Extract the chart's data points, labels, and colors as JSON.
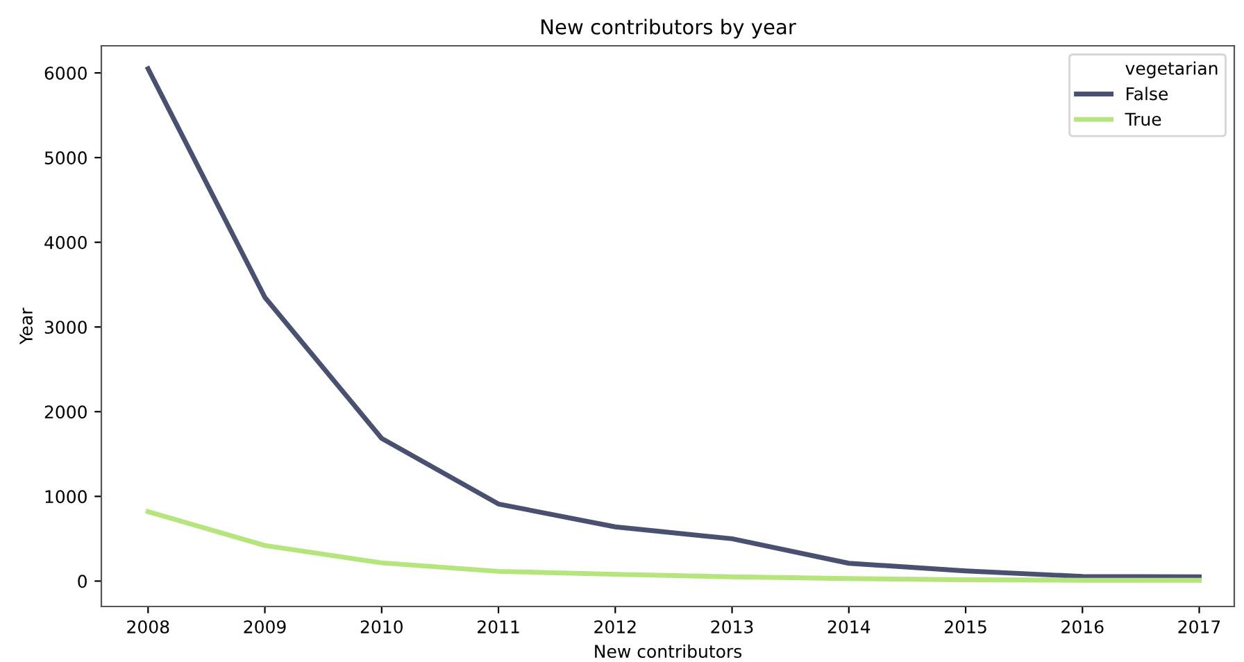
{
  "chart_data": {
    "type": "line",
    "title": "New contributors by year",
    "xlabel": "New contributors",
    "ylabel": "Year",
    "legend_title": "vegetarian",
    "legend": "top right",
    "grid": false,
    "x": [
      2008,
      2009,
      2010,
      2011,
      2012,
      2013,
      2014,
      2015,
      2016,
      2017
    ],
    "xlim": [
      2007.6,
      2017.3
    ],
    "xticks": [
      2008,
      2009,
      2010,
      2011,
      2012,
      2013,
      2014,
      2015,
      2016,
      2017
    ],
    "ylim": [
      -300,
      6320
    ],
    "yticks": [
      0,
      1000,
      2000,
      3000,
      4000,
      5000,
      6000
    ],
    "series": [
      {
        "name": "False",
        "color": "#4a5070",
        "values": [
          6050,
          3350,
          1685,
          910,
          640,
          500,
          210,
          120,
          55,
          50
        ]
      },
      {
        "name": "True",
        "color": "#b5e57c",
        "values": [
          820,
          420,
          215,
          115,
          80,
          50,
          30,
          15,
          10,
          10
        ]
      }
    ]
  }
}
